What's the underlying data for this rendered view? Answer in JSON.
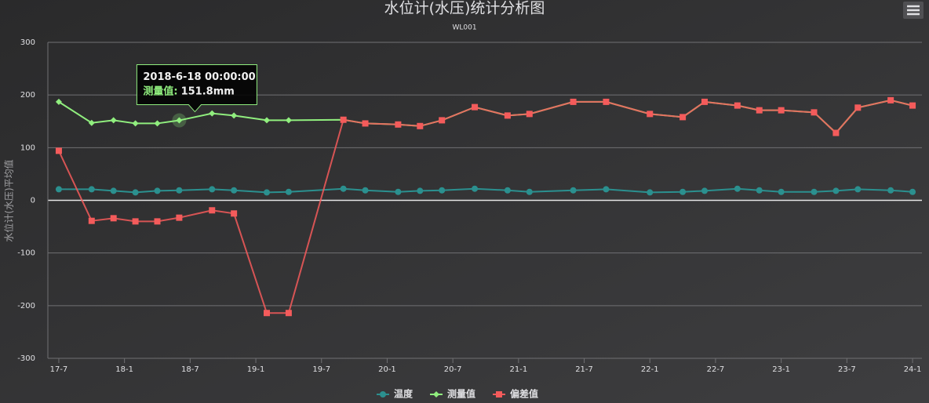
{
  "chart_data": {
    "type": "line",
    "title": "水位计(水压)统计分析图",
    "subtitle": "WL001",
    "y_label": "水位计(水压)平均值",
    "x": [
      "2017-7",
      "2017-10",
      "2017-12",
      "2018-2",
      "2018-4",
      "2018-6",
      "2018-9",
      "2018-11",
      "2019-2",
      "2019-4",
      "2019-9",
      "2019-11",
      "2020-2",
      "2020-4",
      "2020-6",
      "2020-9",
      "2020-12",
      "2021-2",
      "2021-6",
      "2021-9",
      "2022-1",
      "2022-4",
      "2022-6",
      "2022-9",
      "2022-11",
      "2023-1",
      "2023-4",
      "2023-6",
      "2023-8",
      "2023-11",
      "2024-1"
    ],
    "xlim": [
      "2017-6",
      "2024-2"
    ],
    "xticks": [
      {
        "value": "2017-7",
        "label": "17-7"
      },
      {
        "value": "2018-1",
        "label": "18-1"
      },
      {
        "value": "2018-7",
        "label": "18-7"
      },
      {
        "value": "2019-1",
        "label": "19-1"
      },
      {
        "value": "2019-7",
        "label": "19-7"
      },
      {
        "value": "2020-1",
        "label": "20-1"
      },
      {
        "value": "2020-7",
        "label": "20-7"
      },
      {
        "value": "2021-1",
        "label": "21-1"
      },
      {
        "value": "2021-7",
        "label": "21-7"
      },
      {
        "value": "2022-1",
        "label": "22-1"
      },
      {
        "value": "2022-7",
        "label": "22-7"
      },
      {
        "value": "2023-1",
        "label": "23-1"
      },
      {
        "value": "2023-7",
        "label": "23-7"
      },
      {
        "value": "2024-1",
        "label": "24-1"
      }
    ],
    "ylim": [
      -300,
      300
    ],
    "yticks": [
      -300,
      -200,
      -100,
      0,
      100,
      200,
      300
    ],
    "grid": true,
    "series": [
      {
        "name": "温度",
        "color": "#2b908f",
        "marker": "circle",
        "values": [
          21,
          21,
          18,
          15,
          18,
          19,
          21,
          19,
          15,
          16,
          22,
          19,
          16,
          18,
          19,
          22,
          19,
          16,
          19,
          21,
          15,
          16,
          18,
          22,
          19,
          16,
          16,
          18,
          21,
          19,
          16
        ]
      },
      {
        "name": "测量值",
        "color": "#90ee7e",
        "marker": "diamond",
        "values": [
          187,
          147,
          152,
          146,
          146,
          151.8,
          165,
          161,
          152,
          152,
          153,
          146,
          144,
          141,
          152,
          177,
          161,
          164,
          187,
          187,
          164,
          158,
          187,
          180,
          171,
          171,
          167,
          128,
          176,
          190,
          180
        ]
      },
      {
        "name": "偏差值",
        "color": "#f45b5b",
        "marker": "square",
        "values": [
          94,
          -39,
          -34,
          -40,
          -40,
          -33,
          -19,
          -25,
          -214,
          -214,
          153,
          146,
          144,
          141,
          152,
          177,
          161,
          164,
          187,
          187,
          164,
          158,
          187,
          180,
          171,
          171,
          167,
          128,
          176,
          190,
          180
        ]
      }
    ],
    "tooltip": {
      "title": "2018-6-18 00:00:00",
      "name": "测量值:",
      "value": "151.8mm"
    }
  }
}
